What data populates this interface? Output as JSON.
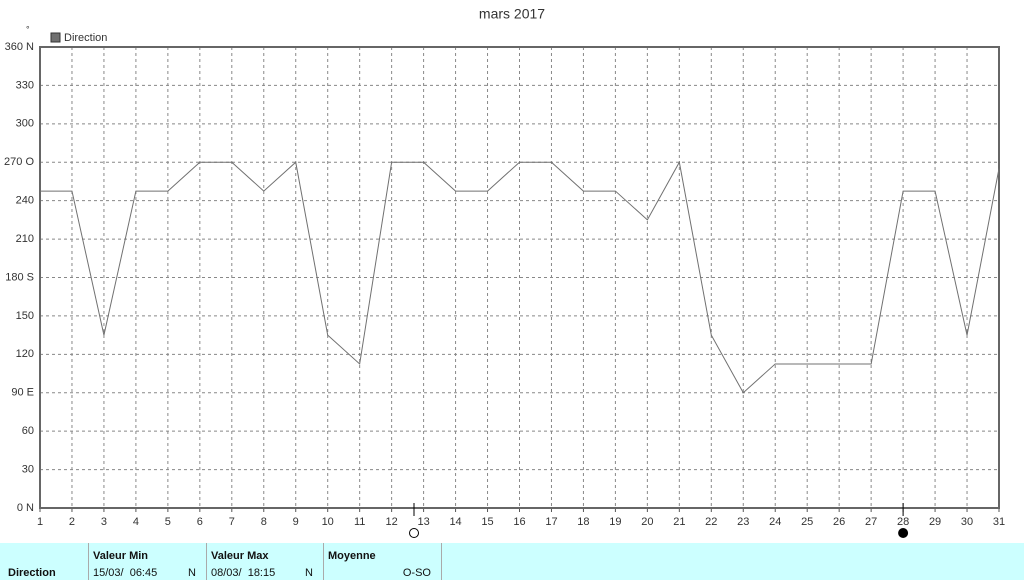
{
  "chart_data": {
    "type": "line",
    "title": "mars 2017",
    "y_unit": "°",
    "x": [
      1,
      2,
      3,
      4,
      5,
      6,
      7,
      8,
      9,
      10,
      11,
      12,
      13,
      14,
      15,
      16,
      17,
      18,
      19,
      20,
      21,
      22,
      23,
      24,
      25,
      26,
      27,
      28,
      29,
      30,
      31
    ],
    "series": [
      {
        "name": "Direction",
        "color": "#707070",
        "values": [
          247.5,
          247.5,
          135,
          247.5,
          247.5,
          270,
          270,
          247.5,
          270,
          135,
          112.5,
          270,
          270,
          247.5,
          247.5,
          270,
          270,
          247.5,
          247.5,
          225,
          270,
          135,
          90,
          112.5,
          112.5,
          112.5,
          112.5,
          247.5,
          247.5,
          135,
          265
        ]
      }
    ],
    "xlim": [
      1,
      31
    ],
    "xticks": [
      1,
      2,
      3,
      4,
      5,
      6,
      7,
      8,
      9,
      10,
      11,
      12,
      13,
      14,
      15,
      16,
      17,
      18,
      19,
      20,
      21,
      22,
      23,
      24,
      25,
      26,
      27,
      28,
      29,
      30,
      31
    ],
    "ylim": [
      0,
      360
    ],
    "yticks": [
      {
        "value": 0,
        "label": "0 N"
      },
      30,
      60,
      {
        "value": 90,
        "label": "90  E"
      },
      120,
      150,
      {
        "value": 180,
        "label": "180 S"
      },
      210,
      240,
      {
        "value": 270,
        "label": "270 O"
      },
      300,
      330,
      {
        "value": 360,
        "label": "360 N"
      }
    ],
    "grid": true,
    "legend": "top-left",
    "moon_markers": [
      {
        "x": 12.7,
        "filled": false
      },
      {
        "x": 28,
        "filled": true
      }
    ]
  },
  "summary": {
    "row_label": "Direction",
    "columns": [
      {
        "header": "Valeur Min",
        "date": "15/03/  06:45",
        "value": "N"
      },
      {
        "header": "Valeur Max",
        "date": "08/03/  18:15",
        "value": "N"
      },
      {
        "header": "Moyenne",
        "date": "",
        "value": "O-SO"
      }
    ]
  }
}
